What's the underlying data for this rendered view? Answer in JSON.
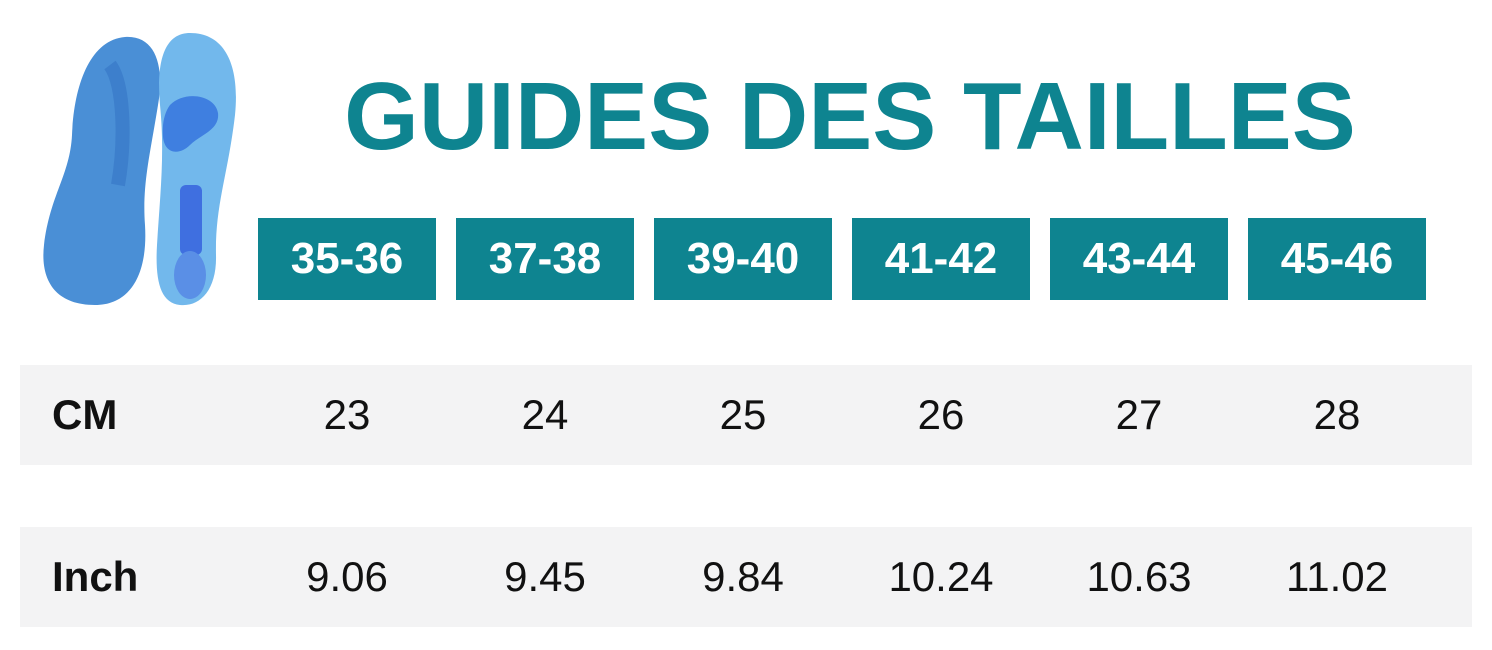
{
  "title": "GUIDES DES TAILLES",
  "sizes": [
    "35-36",
    "37-38",
    "39-40",
    "41-42",
    "43-44",
    "45-46"
  ],
  "rows": [
    {
      "label": "CM",
      "values": [
        "23",
        "24",
        "25",
        "26",
        "27",
        "28"
      ]
    },
    {
      "label": "Inch",
      "values": [
        "9.06",
        "9.45",
        "9.84",
        "10.24",
        "10.63",
        "11.02"
      ]
    }
  ],
  "colors": {
    "accent": "#0e8490",
    "band": "#f3f3f4",
    "insole_light": "#6fb6ea",
    "insole_dark": "#3d7fd0"
  },
  "image_icon": "insoles-image"
}
